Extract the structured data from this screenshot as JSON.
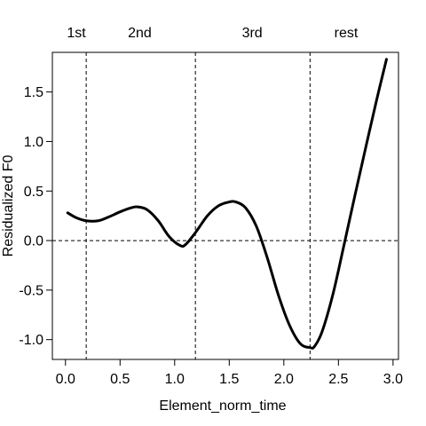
{
  "chart_data": {
    "type": "line",
    "xlabel": "Element_norm_time",
    "ylabel": "Residualized F0",
    "xlim": [
      -0.12,
      3.05
    ],
    "ylim": [
      -1.2,
      1.9
    ],
    "x_ticks": [
      0.0,
      0.5,
      1.0,
      1.5,
      2.0,
      2.5,
      3.0
    ],
    "x_tick_labels": [
      "0.0",
      "0.5",
      "1.0",
      "1.5",
      "2.0",
      "2.5",
      "3.0"
    ],
    "y_ticks": [
      -1.0,
      -0.5,
      0.0,
      0.5,
      1.0,
      1.5
    ],
    "y_tick_labels": [
      "-1.0",
      "-0.5",
      "0.0",
      "0.5",
      "1.0",
      "1.5"
    ],
    "grid": false,
    "reference_lines": {
      "horizontal": [
        0.0
      ],
      "vertical": [
        0.19,
        1.19,
        2.24
      ],
      "style": "dashed"
    },
    "segment_labels": [
      {
        "text": "1st",
        "x": 0.1
      },
      {
        "text": "2nd",
        "x": 0.68
      },
      {
        "text": "3rd",
        "x": 1.71
      },
      {
        "text": "rest",
        "x": 2.57
      }
    ],
    "series": [
      {
        "x": [
          0.02,
          0.1,
          0.19,
          0.3,
          0.4,
          0.5,
          0.6,
          0.66,
          0.75,
          0.85,
          0.95,
          1.05,
          1.1,
          1.19,
          1.3,
          1.4,
          1.5,
          1.56,
          1.65,
          1.75,
          1.85,
          1.95,
          2.05,
          2.15,
          2.24,
          2.28,
          2.35,
          2.45,
          2.55,
          2.65,
          2.75,
          2.85,
          2.94
        ],
        "y": [
          0.28,
          0.23,
          0.2,
          0.2,
          0.24,
          0.29,
          0.33,
          0.34,
          0.31,
          0.2,
          0.04,
          -0.05,
          -0.04,
          0.08,
          0.25,
          0.35,
          0.39,
          0.39,
          0.33,
          0.14,
          -0.18,
          -0.55,
          -0.85,
          -1.04,
          -1.08,
          -1.07,
          -0.92,
          -0.54,
          -0.05,
          0.45,
          0.94,
          1.42,
          1.83
        ]
      }
    ]
  }
}
